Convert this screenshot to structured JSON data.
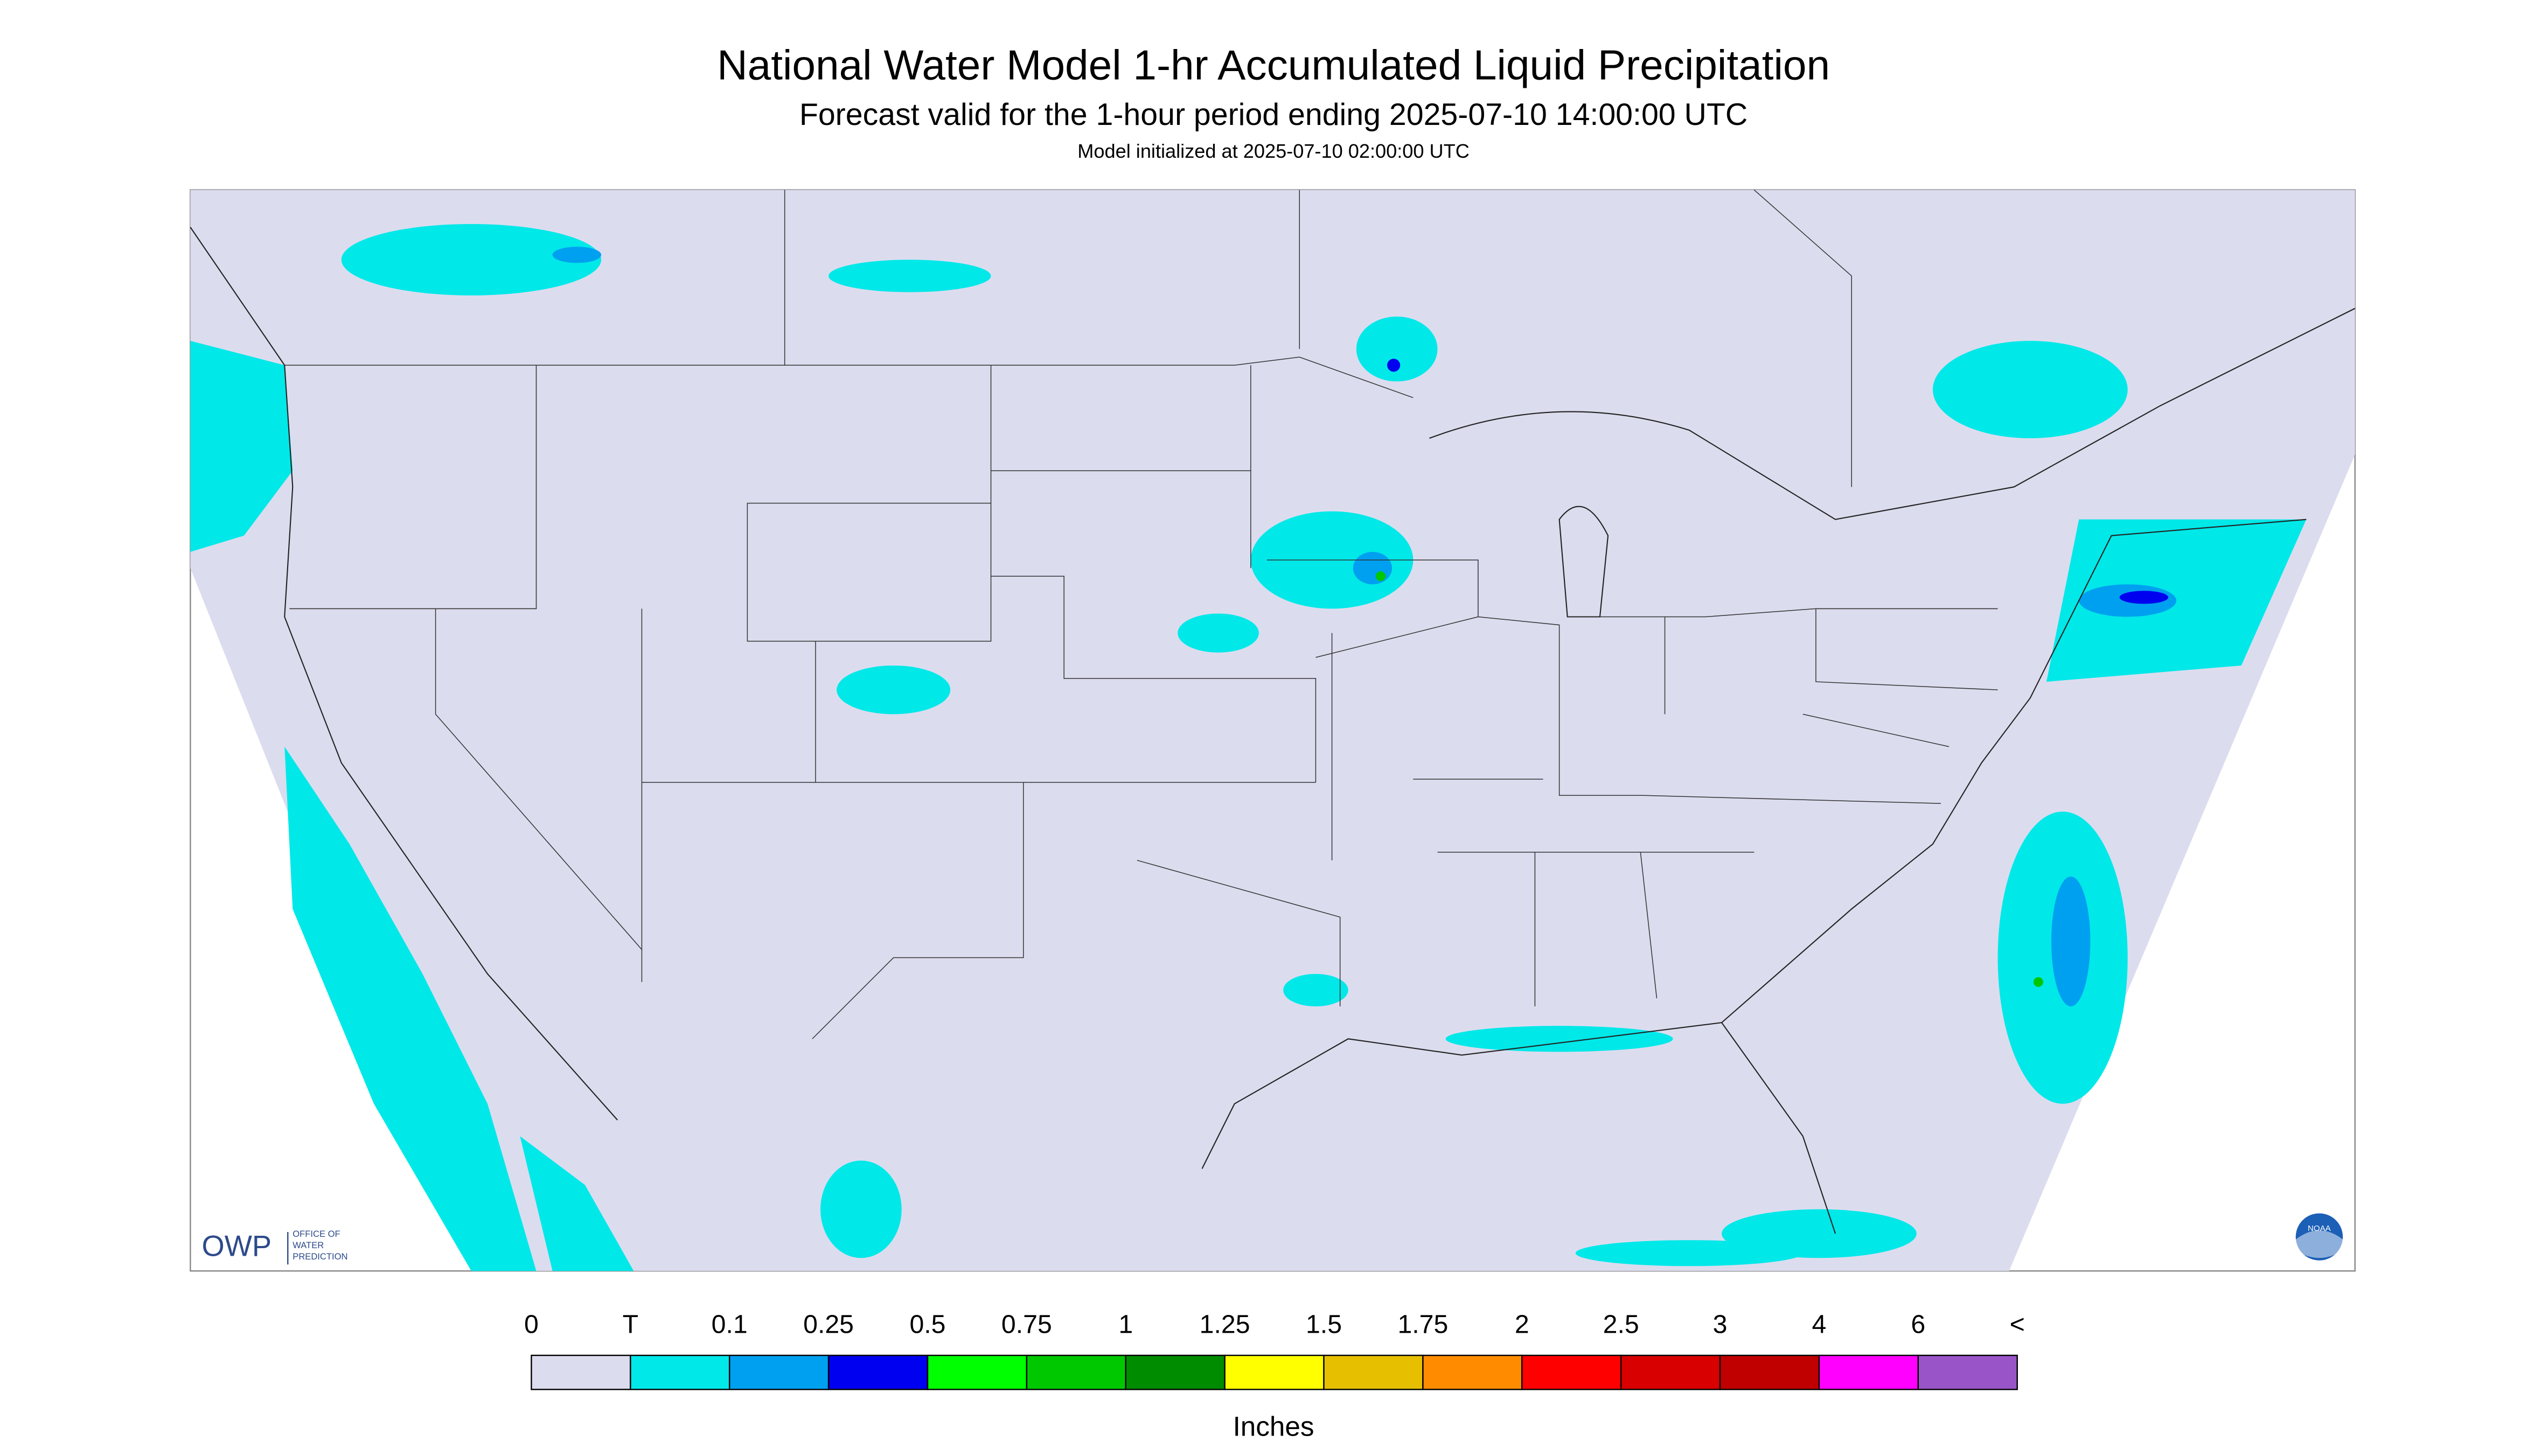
{
  "header": {
    "title": "National Water Model 1-hr Accumulated Liquid Precipitation",
    "subtitle": "Forecast valid for the 1-hour period ending 2025-07-10 14:00:00 UTC",
    "note": "Model initialized at 2025-07-10 02:00:00 UTC"
  },
  "legend": {
    "labels": [
      "0",
      "T",
      "0.1",
      "0.25",
      "0.5",
      "0.75",
      "1",
      "1.25",
      "1.5",
      "1.75",
      "2",
      "2.5",
      "3",
      "4",
      "6",
      "<"
    ],
    "colors": [
      "#dcdcef",
      "#00e8e8",
      "#00a0f0",
      "#0000f0",
      "#00ff00",
      "#00c800",
      "#008c00",
      "#ffff00",
      "#e6c000",
      "#ff8c00",
      "#ff0000",
      "#d80000",
      "#c00000",
      "#ff00ff",
      "#9955c8"
    ],
    "unit": "Inches"
  },
  "logos": {
    "owp": "OWP",
    "owp_text": [
      "OFFICE OF",
      "WATER",
      "PREDICTION"
    ],
    "noaa": "NOAA"
  }
}
